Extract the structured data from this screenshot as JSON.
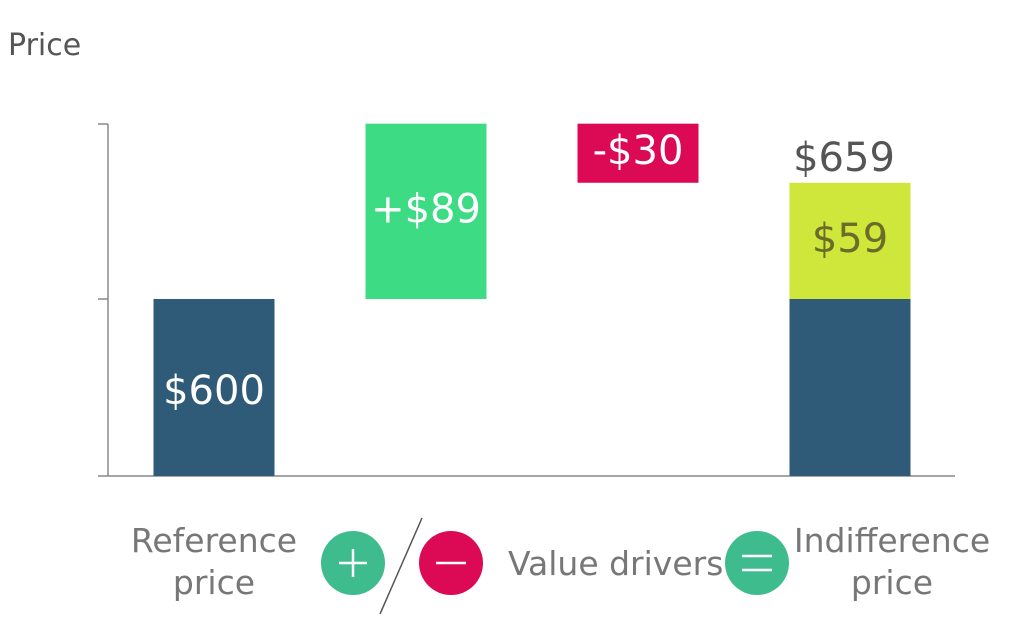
{
  "chart_data": {
    "type": "bar",
    "subtype": "waterfall",
    "ylabel": "Price",
    "grid": false,
    "categories": [
      "Reference price",
      "+",
      "-",
      "Indifference price"
    ],
    "bars": [
      {
        "name": "Reference price",
        "base": 0,
        "value": 600,
        "label": "$600",
        "color": "#2f5b78",
        "text_color": "#ffffff"
      },
      {
        "name": "Positive value driver",
        "base": 600,
        "value": 89,
        "label": "+$89",
        "color": "#3ddc84",
        "text_color": "#ffffff"
      },
      {
        "name": "Negative value driver",
        "base": 659,
        "value": 30,
        "label": "-$30",
        "color": "#dc0a55",
        "text_color": "#ffffff"
      },
      {
        "name": "Indifference price",
        "base": 0,
        "value": 600,
        "color": "#2f5b78"
      },
      {
        "name": "Indifference price (value)",
        "base": 600,
        "value": 59,
        "label": "$59",
        "color": "#cfe63a",
        "text_color": "#6b6b2a"
      }
    ],
    "total_label": "$659",
    "legend": {
      "reference": [
        "Reference",
        "price"
      ],
      "plus_color": "#3fbc8e",
      "minus_color": "#dc0a55",
      "equals_color": "#3fbc8e",
      "value_drivers": "Value drivers",
      "indifference": [
        "Indifference",
        "price"
      ]
    }
  },
  "colors": {
    "axis": "#888888",
    "title": "#555555",
    "total": "#555555",
    "label": "#777777"
  }
}
